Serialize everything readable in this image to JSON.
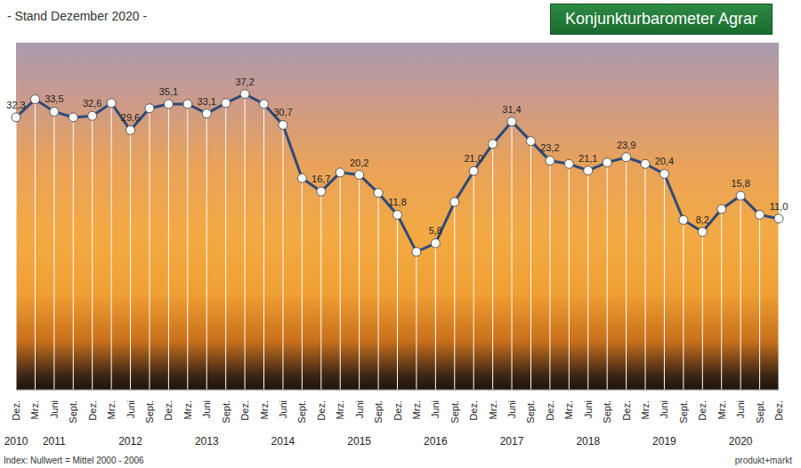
{
  "chart_data": {
    "type": "line",
    "title": "Konjunkturbarometer Agrar",
    "subtitle": "- Stand Dezember 2020 -",
    "annotations": [
      "Index: Nullwert = Mittel 2000 - 2006",
      "produkt+markt"
    ],
    "categories": [
      "Dez.",
      "Mrz.",
      "Juni",
      "Sept.",
      "Dez.",
      "Mrz.",
      "Juni",
      "Sept.",
      "Dez.",
      "Mrz.",
      "Juni",
      "Sept.",
      "Dez.",
      "Mrz.",
      "Juni",
      "Sept.",
      "Dez.",
      "Mrz.",
      "Juni",
      "Sept.",
      "Dez.",
      "Mrz.",
      "Juni",
      "Sept.",
      "Dez.",
      "Mrz.",
      "Juni",
      "Sept.",
      "Dez.",
      "Mrz.",
      "Juni",
      "Sept.",
      "Dez.",
      "Mrz.",
      "Juni",
      "Sept.",
      "Dez.",
      "Mrz.",
      "Juni",
      "Sept.",
      "Dez."
    ],
    "years": [
      "2010",
      null,
      "2011",
      null,
      null,
      null,
      "2012",
      null,
      null,
      null,
      "2013",
      null,
      null,
      null,
      "2014",
      null,
      null,
      null,
      "2015",
      null,
      null,
      null,
      "2016",
      null,
      null,
      null,
      "2017",
      null,
      null,
      null,
      "2018",
      null,
      null,
      null,
      "2019",
      null,
      null,
      null,
      "2020",
      null,
      null
    ],
    "values": [
      32.3,
      36.1,
      33.5,
      32.3,
      32.6,
      35.3,
      29.6,
      34.2,
      35.1,
      35.1,
      33.1,
      35.3,
      37.2,
      35.1,
      30.7,
      19.5,
      16.7,
      20.7,
      20.2,
      16.4,
      11.8,
      4.0,
      5.8,
      14.5,
      21.0,
      26.7,
      31.4,
      27.3,
      23.2,
      22.5,
      21.1,
      22.8,
      23.9,
      22.5,
      20.4,
      10.7,
      8.2,
      13.0,
      15.8,
      11.8,
      11.0
    ],
    "value_labels": [
      "32,3",
      null,
      "33,5",
      null,
      "32,6",
      null,
      "29,6",
      null,
      "35,1",
      null,
      "33,1",
      null,
      "37,2",
      null,
      "30,7",
      null,
      "16,7",
      null,
      "20,2",
      null,
      "11,8",
      null,
      "5,8",
      null,
      "21,0",
      null,
      "31,4",
      null,
      "23,2",
      null,
      "21,1",
      null,
      "23,9",
      null,
      "20,4",
      null,
      "8,2",
      null,
      "15,8",
      null,
      "11,0"
    ],
    "color": "#2e4a78",
    "marker": "circle",
    "line_style": "solid",
    "data_labels": true,
    "tick_labels": "x",
    "ylim": [
      -25,
      48
    ],
    "yticks": []
  }
}
